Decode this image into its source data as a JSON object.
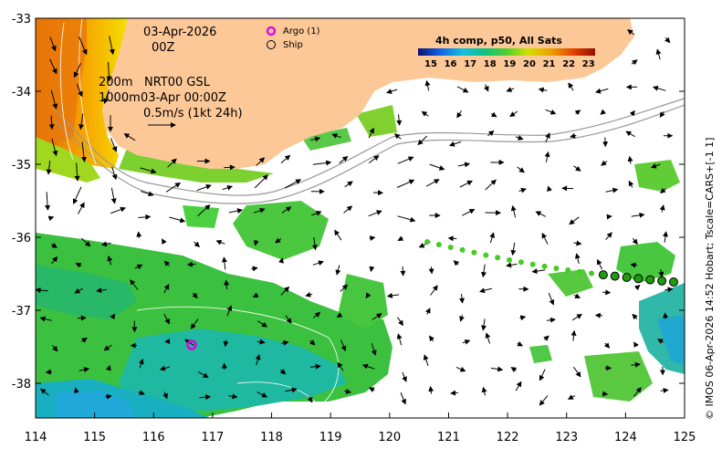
{
  "map": {
    "date": "03-Apr-2026",
    "hour": "00Z",
    "depth_line1": "200m",
    "depth_line2": "1000m",
    "source_line1": "NRT00 GSL",
    "source_line2": "03-Apr 00:00Z",
    "scale_text": "0.5m/s (1kt 24h)",
    "legend_argo": "Argo (1)",
    "legend_ship": "Ship",
    "colorbar_title": "4h comp, p50, All Sats",
    "colorbar_ticks": [
      "15",
      "16",
      "17",
      "18",
      "19",
      "20",
      "21",
      "22",
      "23"
    ],
    "credit": "© IMOS 06-Apr-2026 14:52 Hobart; Tscale=CARS+[-1 1]",
    "lon_ticks": [
      "114",
      "115",
      "116",
      "117",
      "118",
      "119",
      "120",
      "121",
      "122",
      "123",
      "124",
      "125"
    ],
    "lat_ticks": [
      "-33",
      "-34",
      "-35",
      "-36",
      "-37",
      "-38"
    ],
    "colors": {
      "land": "#fcc898",
      "argo": "#e000e0",
      "track": "#44cc22",
      "track_dark": "#229911"
    }
  }
}
